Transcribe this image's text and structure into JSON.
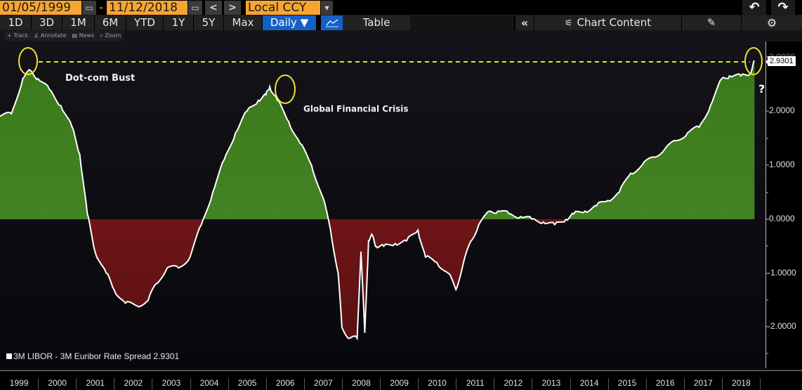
{
  "topbar": {
    "start_date": "01/05/1999",
    "end_date": "11/12/2018",
    "date_separator": "-",
    "prev_label": "<",
    "next_label": ">",
    "currency": "Local CCY",
    "dropdown_glyph": "▾",
    "calendar_glyph": "▭",
    "undo_glyph": "↶",
    "redo_glyph": "↷"
  },
  "toolbar": {
    "periods": [
      "1D",
      "3D",
      "1M",
      "6M",
      "YTD",
      "1Y",
      "5Y",
      "Max"
    ],
    "frequency": "Daily ▼",
    "chart_type_glyph": "📈",
    "table_label": "Table",
    "collapse_glyph": "«",
    "chart_content_label": "Chart Content",
    "chart_content_glyph": "⚟",
    "edit_glyph": "✎",
    "settings_glyph": "⚙"
  },
  "mini_tools": {
    "track": "+ Track",
    "annotate": "∠ Annotate",
    "news": "▤ News",
    "zoom": "⌕ Zoom"
  },
  "annotations": {
    "dotcom": "Dot-com Bust",
    "gfc": "Global Financial Crisis",
    "question": "?"
  },
  "legend": {
    "label": "3M LIBOR - 3M Euribor Rate Spread 2.9301"
  },
  "colors": {
    "positive_fill": "#3e7a1f",
    "negative_fill": "#7e1a1c",
    "line": "#ffffff",
    "highlight": "#f2e22a",
    "accent_orange": "#f7a531",
    "active_blue": "#1460c8"
  },
  "chart_data": {
    "type": "area",
    "title": "3M LIBOR - 3M Euribor Rate Spread",
    "last_value": 2.9301,
    "last_value_label": "2.9301",
    "xlabel": "",
    "ylabel": "",
    "x_ticks": [
      "1999",
      "2000",
      "2001",
      "2002",
      "2003",
      "2004",
      "2005",
      "2006",
      "2007",
      "2008",
      "2009",
      "2010",
      "2011",
      "2012",
      "2013",
      "2014",
      "2015",
      "2016",
      "2017",
      "2018"
    ],
    "y_ticks": [
      "2.0000",
      "1.0000",
      "0.0000",
      "-1.0000",
      "-2.0000"
    ],
    "ylim": [
      -2.7,
      3.0
    ],
    "grid": false,
    "reference_line": {
      "value": 2.93,
      "style": "dashed",
      "color": "#f2e22a"
    },
    "series": [
      {
        "name": "3M LIBOR - 3M Euribor Rate Spread",
        "x": [
          1999.0,
          1999.3,
          1999.6,
          1999.8,
          2000.0,
          2000.3,
          2000.6,
          2000.9,
          2001.1,
          2001.3,
          2001.5,
          2001.8,
          2002.0,
          2002.3,
          2002.6,
          2002.9,
          2003.1,
          2003.4,
          2003.7,
          2004.0,
          2004.3,
          2004.6,
          2004.9,
          2005.2,
          2005.5,
          2005.8,
          2006.0,
          2006.1,
          2006.3,
          2006.6,
          2006.9,
          2007.2,
          2007.5,
          2007.7,
          2007.9,
          2008.0,
          2008.2,
          2008.4,
          2008.5,
          2008.6,
          2008.7,
          2008.8,
          2008.9,
          2009.1,
          2009.4,
          2009.7,
          2010.0,
          2010.2,
          2010.5,
          2010.8,
          2011.0,
          2011.2,
          2011.4,
          2011.6,
          2011.9,
          2012.1,
          2012.4,
          2012.7,
          2013.0,
          2013.3,
          2013.6,
          2013.9,
          2014.1,
          2014.4,
          2014.7,
          2015.0,
          2015.3,
          2015.6,
          2015.9,
          2016.2,
          2016.5,
          2016.8,
          2017.1,
          2017.4,
          2017.7,
          2018.0,
          2018.2,
          2018.5,
          2018.75,
          2018.86
        ],
        "values": [
          1.9,
          1.95,
          2.6,
          2.75,
          2.6,
          2.4,
          2.1,
          1.7,
          1.2,
          0.1,
          -0.6,
          -1.0,
          -1.3,
          -1.55,
          -1.6,
          -1.5,
          -1.2,
          -0.9,
          -0.9,
          -0.7,
          -0.1,
          0.5,
          1.1,
          1.6,
          2.0,
          2.2,
          2.3,
          2.45,
          2.2,
          1.8,
          1.4,
          1.0,
          0.4,
          -0.2,
          -1.0,
          -2.0,
          -2.2,
          -2.2,
          -0.6,
          -2.1,
          -0.4,
          -0.3,
          -0.5,
          -0.5,
          -0.45,
          -0.4,
          -0.2,
          -0.7,
          -0.8,
          -1.0,
          -1.3,
          -0.8,
          -0.4,
          -0.1,
          0.15,
          0.15,
          0.1,
          0.05,
          0.0,
          -0.05,
          -0.1,
          0.0,
          0.1,
          0.15,
          0.25,
          0.35,
          0.5,
          0.85,
          1.0,
          1.15,
          1.3,
          1.45,
          1.6,
          1.7,
          2.1,
          2.6,
          2.65,
          2.65,
          2.7,
          2.9301
        ]
      }
    ]
  }
}
